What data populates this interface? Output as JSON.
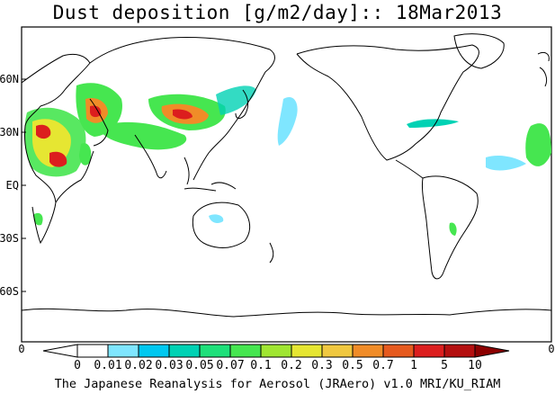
{
  "title": "Dust deposition [g/m2/day]:: 18Mar2013",
  "footer": "The Japanese Reanalysis for Aerosol (JRAero) v1.0 MRI/KU_RIAM",
  "lat_labels": [
    "60N",
    "30N",
    "EQ",
    "30S",
    "60S"
  ],
  "lon_labels": {
    "left": "0",
    "right": "0"
  },
  "colorbar": {
    "labels": [
      "0",
      "0.01",
      "0.02",
      "0.03",
      "0.05",
      "0.07",
      "0.1",
      "0.2",
      "0.3",
      "0.5",
      "0.7",
      "1",
      "5",
      "10"
    ],
    "colors": [
      "#ffffff",
      "#ffffff",
      "#7fe6ff",
      "#00c8f0",
      "#00d2b4",
      "#1ee07a",
      "#46e650",
      "#a0e632",
      "#e6e632",
      "#f0c840",
      "#f08c28",
      "#e65a1e",
      "#dc1e1e",
      "#b40f0f",
      "#8c0000"
    ]
  },
  "dust_colors": {
    "light": "#46e650",
    "mid": "#e6e632",
    "orange": "#f08c28",
    "red": "#dc1e1e",
    "cyan": "#00d2b4"
  }
}
